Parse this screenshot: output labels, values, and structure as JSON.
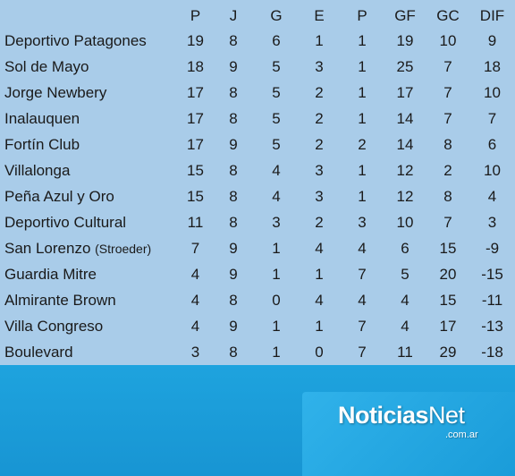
{
  "headers": [
    "",
    "P",
    "J",
    "G",
    "E",
    "P",
    "GF",
    "GC",
    "DIF"
  ],
  "rows": [
    {
      "team": "Deportivo Patagones",
      "note": "",
      "P": "19",
      "J": "8",
      "G": "6",
      "E": "1",
      "Pd": "1",
      "GF": "19",
      "GC": "10",
      "DIF": "9"
    },
    {
      "team": "Sol de Mayo",
      "note": "",
      "P": "18",
      "J": "9",
      "G": "5",
      "E": "3",
      "Pd": "1",
      "GF": "25",
      "GC": "7",
      "DIF": "18"
    },
    {
      "team": "Jorge Newbery",
      "note": "",
      "P": "17",
      "J": "8",
      "G": "5",
      "E": "2",
      "Pd": "1",
      "GF": "17",
      "GC": "7",
      "DIF": "10"
    },
    {
      "team": "Inalauquen",
      "note": "",
      "P": "17",
      "J": "8",
      "G": "5",
      "E": "2",
      "Pd": "1",
      "GF": "14",
      "GC": "7",
      "DIF": "7"
    },
    {
      "team": "Fortín Club",
      "note": "",
      "P": "17",
      "J": "9",
      "G": "5",
      "E": "2",
      "Pd": "2",
      "GF": "14",
      "GC": "8",
      "DIF": "6"
    },
    {
      "team": "Villalonga",
      "note": "",
      "P": "15",
      "J": "8",
      "G": "4",
      "E": "3",
      "Pd": "1",
      "GF": "12",
      "GC": "2",
      "DIF": "10"
    },
    {
      "team": "Peña Azul y Oro",
      "note": "",
      "P": "15",
      "J": "8",
      "G": "4",
      "E": "3",
      "Pd": "1",
      "GF": "12",
      "GC": "8",
      "DIF": "4"
    },
    {
      "team": "Deportivo Cultural",
      "note": "",
      "P": "11",
      "J": "8",
      "G": "3",
      "E": "2",
      "Pd": "3",
      "GF": "10",
      "GC": "7",
      "DIF": "3"
    },
    {
      "team": "San Lorenzo",
      "note": "(Stroeder)",
      "P": "7",
      "J": "9",
      "G": "1",
      "E": "4",
      "Pd": "4",
      "GF": "6",
      "GC": "15",
      "DIF": "-9"
    },
    {
      "team": "Guardia Mitre",
      "note": "",
      "P": "4",
      "J": "9",
      "G": "1",
      "E": "1",
      "Pd": "7",
      "GF": "5",
      "GC": "20",
      "DIF": "-15"
    },
    {
      "team": "Almirante Brown",
      "note": "",
      "P": "4",
      "J": "8",
      "G": "0",
      "E": "4",
      "Pd": "4",
      "GF": "4",
      "GC": "15",
      "DIF": "-11"
    },
    {
      "team": "Villa Congreso",
      "note": "",
      "P": "4",
      "J": "9",
      "G": "1",
      "E": "1",
      "Pd": "7",
      "GF": "4",
      "GC": "17",
      "DIF": "-13"
    },
    {
      "team": "Boulevard",
      "note": "",
      "P": "3",
      "J": "8",
      "G": "1",
      "E": "0",
      "Pd": "7",
      "GF": "11",
      "GC": "29",
      "DIF": "-18"
    }
  ],
  "logo": {
    "main": "Noticias",
    "main_suffix": "Net",
    "sub": ".com.ar"
  },
  "colors": {
    "panel": "#a9cce9",
    "footer": "#1b9ad6",
    "text": "#1a1a1a"
  }
}
